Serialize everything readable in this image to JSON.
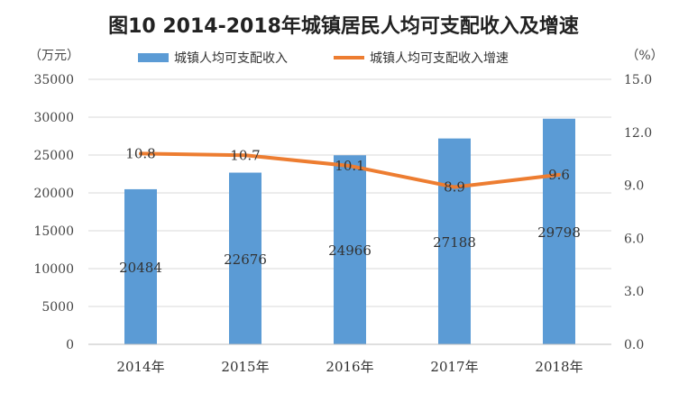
{
  "chart_data": {
    "type": "bar",
    "title": "图10  2014-2018年城镇居民人均可支配收入及增速",
    "categories": [
      "2014年",
      "2015年",
      "2016年",
      "2017年",
      "2018年"
    ],
    "series": [
      {
        "name": "城镇人均可支配收入",
        "type": "bar",
        "axis": "left",
        "values": [
          20484,
          22676,
          24966,
          27188,
          29798
        ],
        "labels": [
          "20484",
          "22676",
          "24966",
          "27188",
          "29798"
        ],
        "color": "#5B9BD5"
      },
      {
        "name": "城镇人均可支配收入增速",
        "type": "line",
        "axis": "right",
        "values": [
          10.8,
          10.7,
          10.1,
          8.9,
          9.6
        ],
        "labels": [
          "10.8",
          "10.7",
          "10.1",
          "8.9",
          "9.6"
        ],
        "color": "#ED7D31"
      }
    ],
    "left_axis": {
      "unit": "（万元）",
      "ylim": [
        0,
        35000
      ],
      "ticks": [
        "0",
        "5000",
        "10000",
        "15000",
        "20000",
        "25000",
        "30000",
        "35000"
      ]
    },
    "right_axis": {
      "unit": "（%）",
      "ylim": [
        0,
        15
      ],
      "ticks": [
        "0.0",
        "3.0",
        "6.0",
        "9.0",
        "12.0",
        "15.0"
      ]
    },
    "grid": true,
    "legend": "top"
  }
}
